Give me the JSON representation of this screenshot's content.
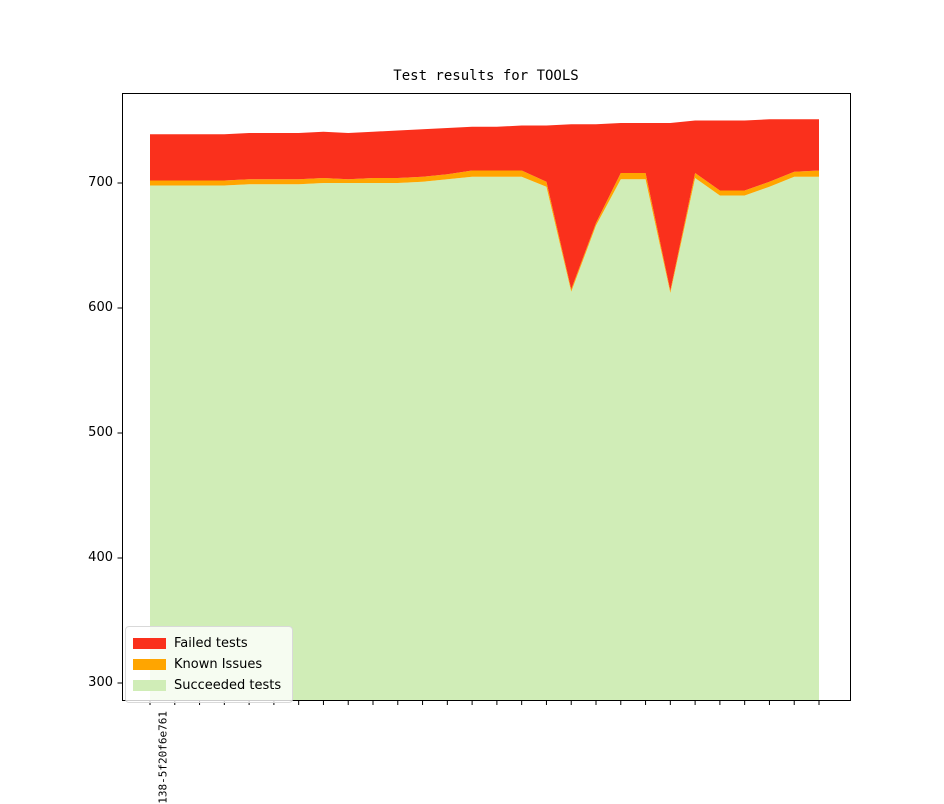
{
  "chart_data": {
    "type": "area",
    "stacked": true,
    "title": "Test results for TOOLS",
    "x_count": 28,
    "x_first_tick_label": "138-5f20f6e761",
    "y_ticks": [
      300,
      400,
      500,
      600,
      700
    ],
    "ylim": [
      286,
      772
    ],
    "grid": false,
    "legend_position": "lower left",
    "series": [
      {
        "name": "Succeeded tests",
        "color": "#d0edb7",
        "values": [
          698,
          698,
          698,
          698,
          699,
          699,
          699,
          700,
          700,
          700,
          700,
          701,
          703,
          705,
          705,
          705,
          697,
          613,
          666,
          703,
          703,
          612,
          704,
          690,
          690,
          697,
          705,
          705
        ]
      },
      {
        "name": "Known Issues",
        "color": "#ffa500",
        "values": [
          4,
          4,
          4,
          4,
          4,
          4,
          4,
          4,
          3,
          4,
          4,
          4,
          4,
          5,
          5,
          5,
          4,
          2,
          2,
          5,
          5,
          2,
          4,
          4,
          4,
          4,
          4,
          5
        ]
      },
      {
        "name": "Failed tests",
        "color": "#fa301c",
        "values": [
          37,
          37,
          37,
          37,
          37,
          37,
          37,
          37,
          37,
          37,
          38,
          38,
          37,
          35,
          35,
          36,
          45,
          132,
          79,
          40,
          40,
          134,
          42,
          56,
          56,
          50,
          42,
          41
        ]
      }
    ]
  }
}
